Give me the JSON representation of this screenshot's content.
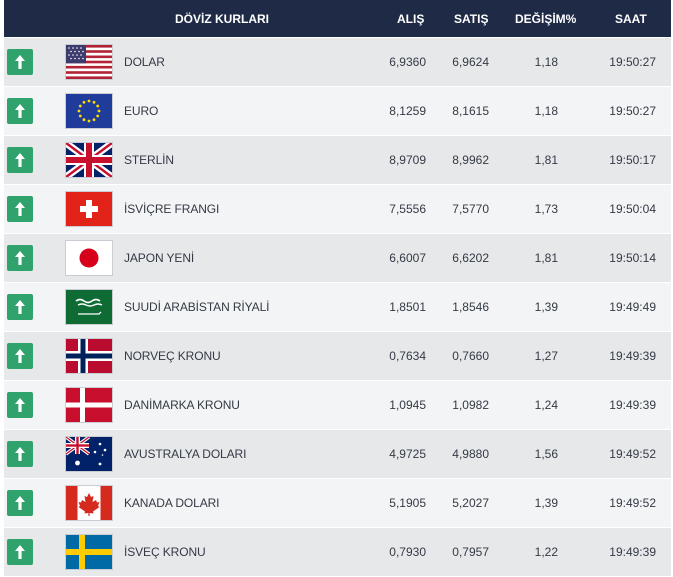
{
  "header": {
    "title": "DÖVİZ KURLARI",
    "alis": "ALIŞ",
    "satis": "SATIŞ",
    "degisim": "DEĞİŞİM%",
    "saat": "SAAT"
  },
  "rows": [
    {
      "name": "DOLAR",
      "alis": "6,9360",
      "satis": "6,9624",
      "degisim": "1,18",
      "saat": "19:50:27",
      "flag": "usa-flag-icon"
    },
    {
      "name": "EURO",
      "alis": "8,1259",
      "satis": "8,1615",
      "degisim": "1,18",
      "saat": "19:50:27",
      "flag": "eu-flag-icon"
    },
    {
      "name": "STERLİN",
      "alis": "8,9709",
      "satis": "8,9962",
      "degisim": "1,81",
      "saat": "19:50:17",
      "flag": "uk-flag-icon"
    },
    {
      "name": "İSVİÇRE FRANGI",
      "alis": "7,5556",
      "satis": "7,5770",
      "degisim": "1,73",
      "saat": "19:50:04",
      "flag": "switzerland-flag-icon"
    },
    {
      "name": "JAPON YENİ",
      "alis": "6,6007",
      "satis": "6,6202",
      "degisim": "1,81",
      "saat": "19:50:14",
      "flag": "japan-flag-icon"
    },
    {
      "name": "SUUDİ ARABİSTAN RİYALİ",
      "alis": "1,8501",
      "satis": "1,8546",
      "degisim": "1,39",
      "saat": "19:49:49",
      "flag": "saudi-arabia-flag-icon"
    },
    {
      "name": "NORVEÇ KRONU",
      "alis": "0,7634",
      "satis": "0,7660",
      "degisim": "1,27",
      "saat": "19:49:39",
      "flag": "norway-flag-icon"
    },
    {
      "name": "DANİMARKA KRONU",
      "alis": "1,0945",
      "satis": "1,0982",
      "degisim": "1,24",
      "saat": "19:49:39",
      "flag": "denmark-flag-icon"
    },
    {
      "name": "AVUSTRALYA DOLARI",
      "alis": "4,9725",
      "satis": "4,9880",
      "degisim": "1,56",
      "saat": "19:49:52",
      "flag": "australia-flag-icon"
    },
    {
      "name": "KANADA DOLARI",
      "alis": "5,1905",
      "satis": "5,2027",
      "degisim": "1,39",
      "saat": "19:49:52",
      "flag": "canada-flag-icon"
    },
    {
      "name": "İSVEÇ KRONU",
      "alis": "0,7930",
      "satis": "0,7957",
      "degisim": "1,22",
      "saat": "19:49:39",
      "flag": "sweden-flag-icon"
    }
  ],
  "colors": {
    "header_bg": "#1f2a47",
    "up_arrow_bg": "#2fa36b",
    "row_odd": "#e7e8ea",
    "row_even": "#f3f4f5"
  },
  "icons": {
    "trend": "arrow-up-icon"
  }
}
